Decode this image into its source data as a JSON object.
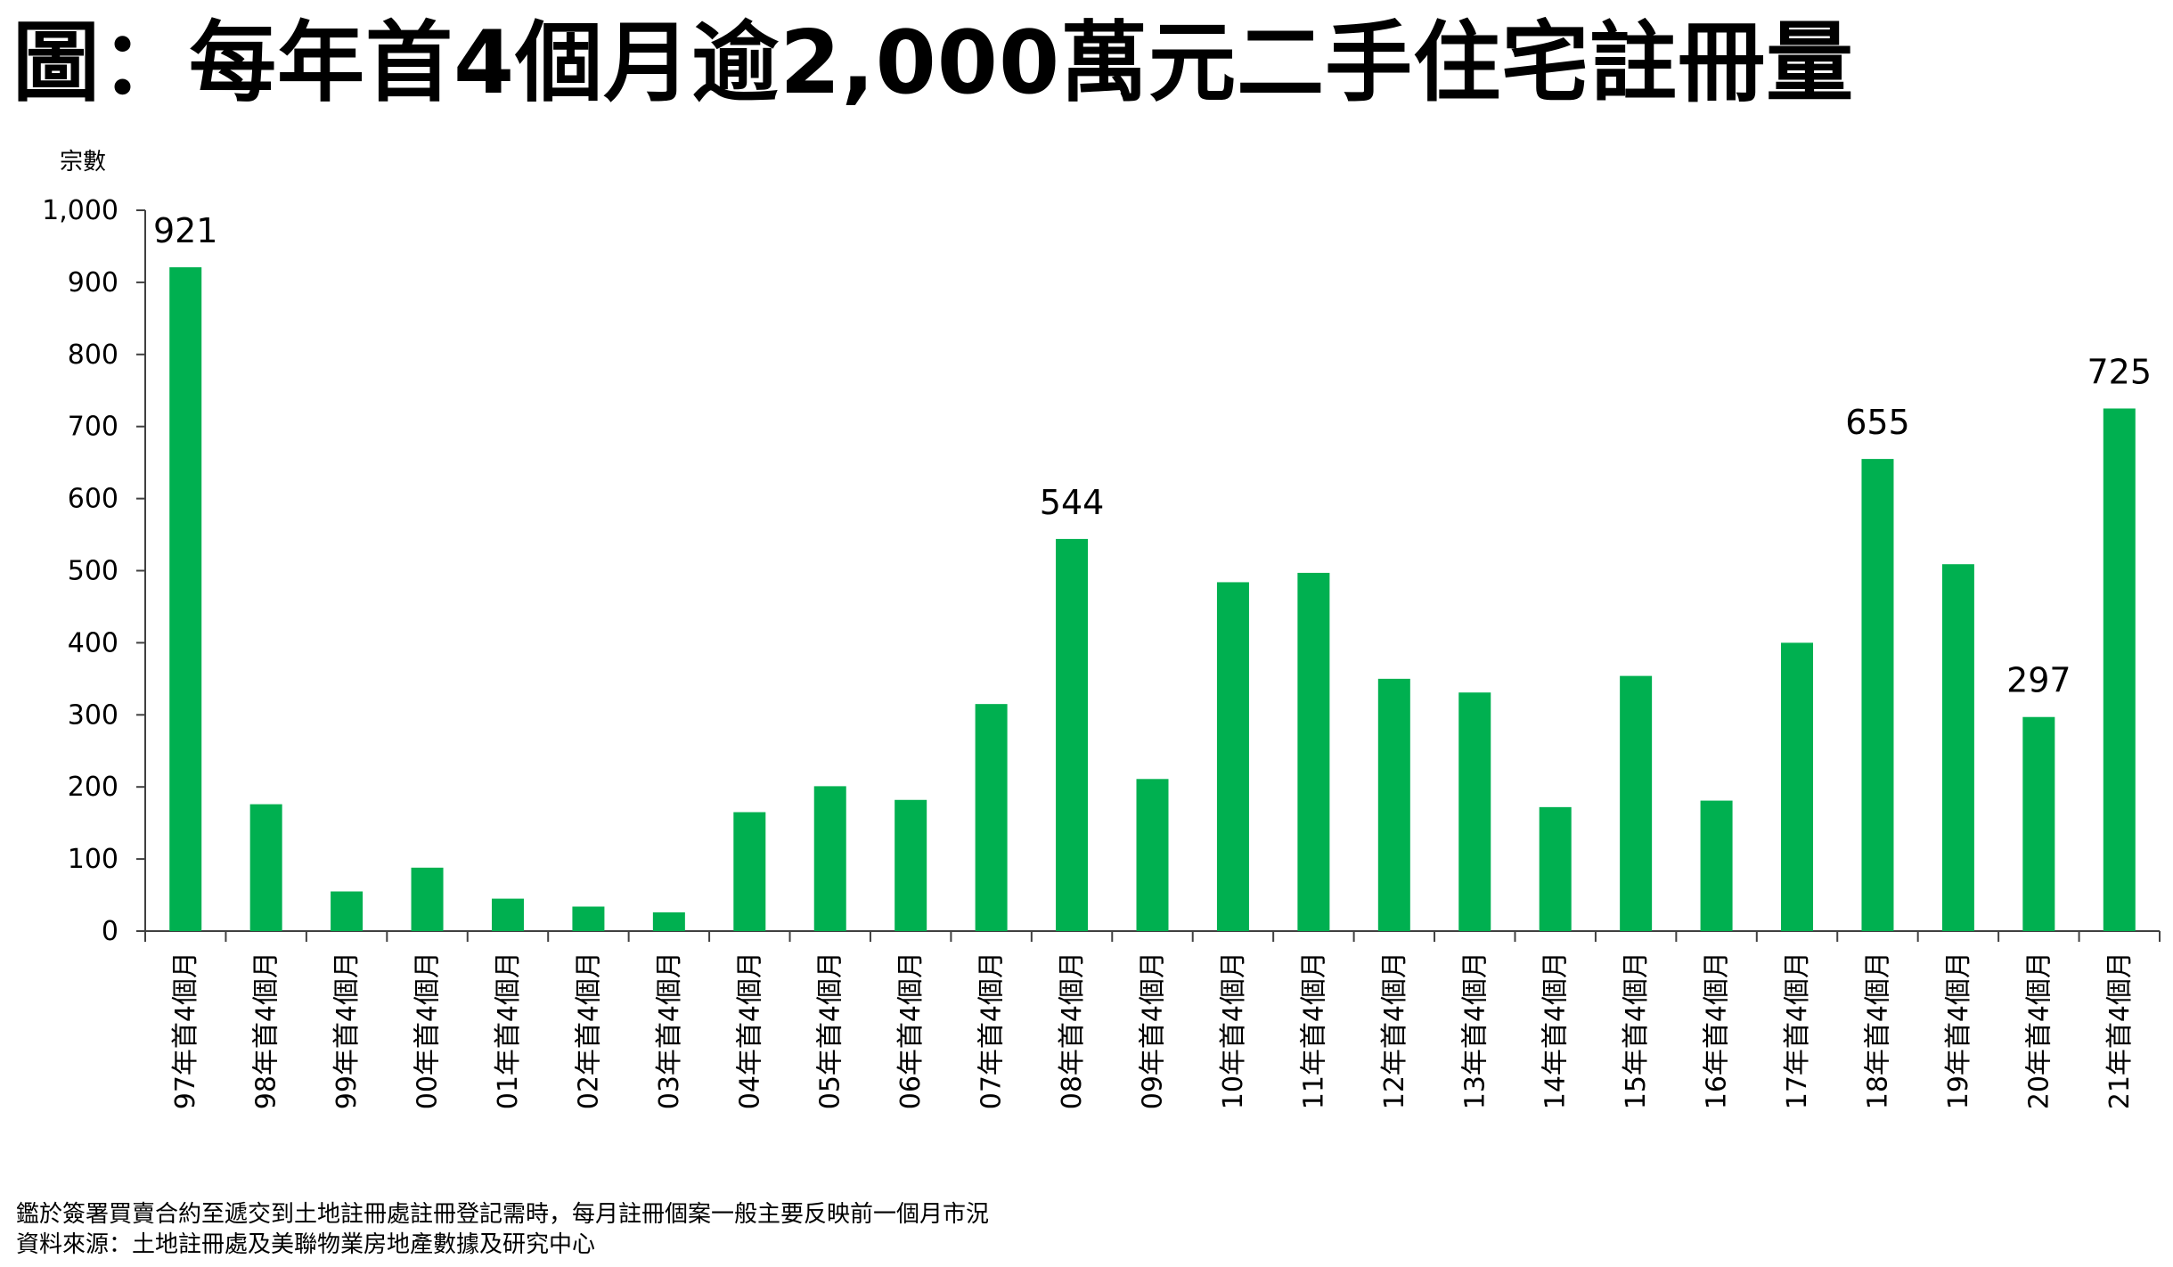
{
  "title": "圖：每年首4個月逾2,000萬元二手住宅註冊量",
  "chart_data": {
    "type": "bar",
    "ylabel": "宗數",
    "ylim": [
      0,
      1000
    ],
    "yticks": [
      0,
      100,
      200,
      300,
      400,
      500,
      600,
      700,
      800,
      900,
      1000
    ],
    "ytick_labels": [
      "0",
      "100",
      "200",
      "300",
      "400",
      "500",
      "600",
      "700",
      "800",
      "900",
      "1,000"
    ],
    "categories": [
      "97年首4個月",
      "98年首4個月",
      "99年首4個月",
      "00年首4個月",
      "01年首4個月",
      "02年首4個月",
      "03年首4個月",
      "04年首4個月",
      "05年首4個月",
      "06年首4個月",
      "07年首4個月",
      "08年首4個月",
      "09年首4個月",
      "10年首4個月",
      "11年首4個月",
      "12年首4個月",
      "13年首4個月",
      "14年首4個月",
      "15年首4個月",
      "16年首4個月",
      "17年首4個月",
      "18年首4個月",
      "19年首4個月",
      "20年首4個月",
      "21年首4個月"
    ],
    "values": [
      921,
      176,
      55,
      88,
      45,
      34,
      26,
      165,
      201,
      182,
      315,
      544,
      211,
      484,
      497,
      350,
      331,
      172,
      354,
      181,
      400,
      655,
      509,
      297,
      725
    ],
    "data_labels": [
      {
        "index": 0,
        "text": "921"
      },
      {
        "index": 11,
        "text": "544"
      },
      {
        "index": 21,
        "text": "655"
      },
      {
        "index": 23,
        "text": "297"
      },
      {
        "index": 24,
        "text": "725"
      }
    ],
    "bar_color": "#00b050",
    "axis_color": "#404040",
    "grid": false
  },
  "footnotes": {
    "line1": "鑑於簽署買賣合約至遞交到土地註冊處註冊登記需時，每月註冊個案一般主要反映前一個月市況",
    "line2": "資料來源：土地註冊處及美聯物業房地產數據及研究中心"
  }
}
